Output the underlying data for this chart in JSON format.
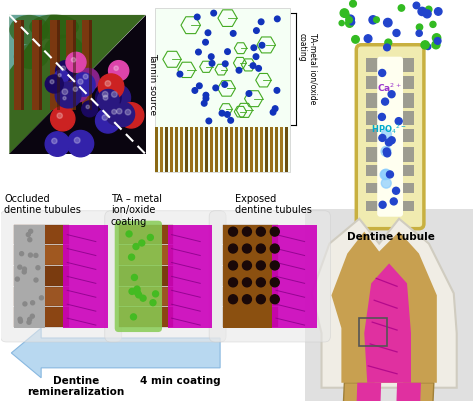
{
  "bg_color": "#ffffff",
  "labels": {
    "tannin_source": "Tannin source",
    "ta_coating_label": "TA-metal ion/oxide\ncoating",
    "occluded": "Occluded\ndentine tubules",
    "ta_metal_ion": "TA – metal\nion/oxide\ncoating",
    "exposed": "Exposed\ndentine tubules",
    "dentine_tubule": "Dentine tubule",
    "remineralization": "Dentine\nremineralization",
    "four_min": "4 min coating",
    "ca2": "Ca$^{2+}$",
    "hpo4": "HPO$_4^{2-}$"
  },
  "colors": {
    "white": "#ffffff",
    "black": "#000000",
    "magenta": "#cc00bb",
    "brown1": "#8B4513",
    "brown2": "#a06820",
    "brown3": "#c8a060",
    "green_mol": "#44aa33",
    "blue_ion": "#2244cc",
    "blue_arrow": "#b0d4f0",
    "yellow_tube": "#f0ebb0",
    "yellow_border": "#c8b040",
    "gray_dentin": "#999999",
    "gray_stone": "#aaaaaa",
    "green_coat": "#88cc55",
    "light_green_bg": "#e8f8e0",
    "purple_ca": "#9933cc",
    "cyan_hpo": "#00aacc",
    "bg_panel": "#e8e8e8",
    "forest_dark": "#2d5a1a",
    "forest_mid": "#4a7a2a",
    "trunk_brown": "#6b3a1f",
    "berry_dark": "#0a0520",
    "blue_berry": "#2a1870",
    "red_berry": "#cc2222",
    "pink_berry": "#cc4488",
    "tooth_enamel": "#f5f2e8",
    "tooth_dentin": "#c8a050",
    "tooth_pulp": "#e03090",
    "tooth_border": "#d0c890"
  }
}
